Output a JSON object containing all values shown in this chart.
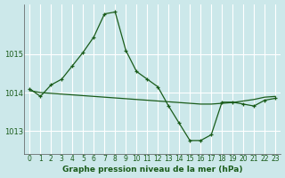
{
  "title": "Graphe pression niveau de la mer (hPa)",
  "bg_color": "#cce8ea",
  "plot_bg_color": "#cce8ea",
  "grid_color": "#ffffff",
  "line_color1": "#1a5c1a",
  "line_color2": "#1a5c1a",
  "axis_color": "#555555",
  "label_color": "#1a5c1a",
  "xlim": [
    -0.5,
    23.5
  ],
  "ylim": [
    1012.4,
    1016.3
  ],
  "yticks": [
    1013,
    1014,
    1015
  ],
  "xtick_labels": [
    "0",
    "1",
    "2",
    "3",
    "4",
    "5",
    "6",
    "7",
    "8",
    "9",
    "10",
    "11",
    "12",
    "13",
    "14",
    "15",
    "16",
    "17",
    "18",
    "19",
    "20",
    "21",
    "22",
    "23"
  ],
  "series1_x": [
    0,
    1,
    2,
    3,
    4,
    5,
    6,
    7,
    8,
    9,
    10,
    11,
    12,
    13,
    14,
    15,
    16,
    17,
    18,
    19,
    20,
    21,
    22,
    23
  ],
  "series1_y": [
    1014.1,
    1013.9,
    1014.2,
    1014.35,
    1014.7,
    1015.05,
    1015.45,
    1016.05,
    1016.1,
    1015.1,
    1014.55,
    1014.35,
    1014.15,
    1013.65,
    1013.2,
    1012.75,
    1012.75,
    1012.9,
    1013.75,
    1013.75,
    1013.7,
    1013.65,
    1013.8,
    1013.85
  ],
  "series2_x": [
    0,
    1,
    2,
    3,
    4,
    5,
    6,
    7,
    8,
    9,
    10,
    11,
    12,
    13,
    14,
    15,
    16,
    17,
    18,
    19,
    20,
    21,
    22,
    23
  ],
  "series2_y": [
    1014.05,
    1014.0,
    1013.98,
    1013.96,
    1013.94,
    1013.92,
    1013.9,
    1013.88,
    1013.86,
    1013.84,
    1013.82,
    1013.8,
    1013.78,
    1013.76,
    1013.74,
    1013.72,
    1013.7,
    1013.7,
    1013.72,
    1013.74,
    1013.78,
    1013.82,
    1013.88,
    1013.9
  ],
  "tick_fontsize": 5.5,
  "label_fontsize": 6.5
}
